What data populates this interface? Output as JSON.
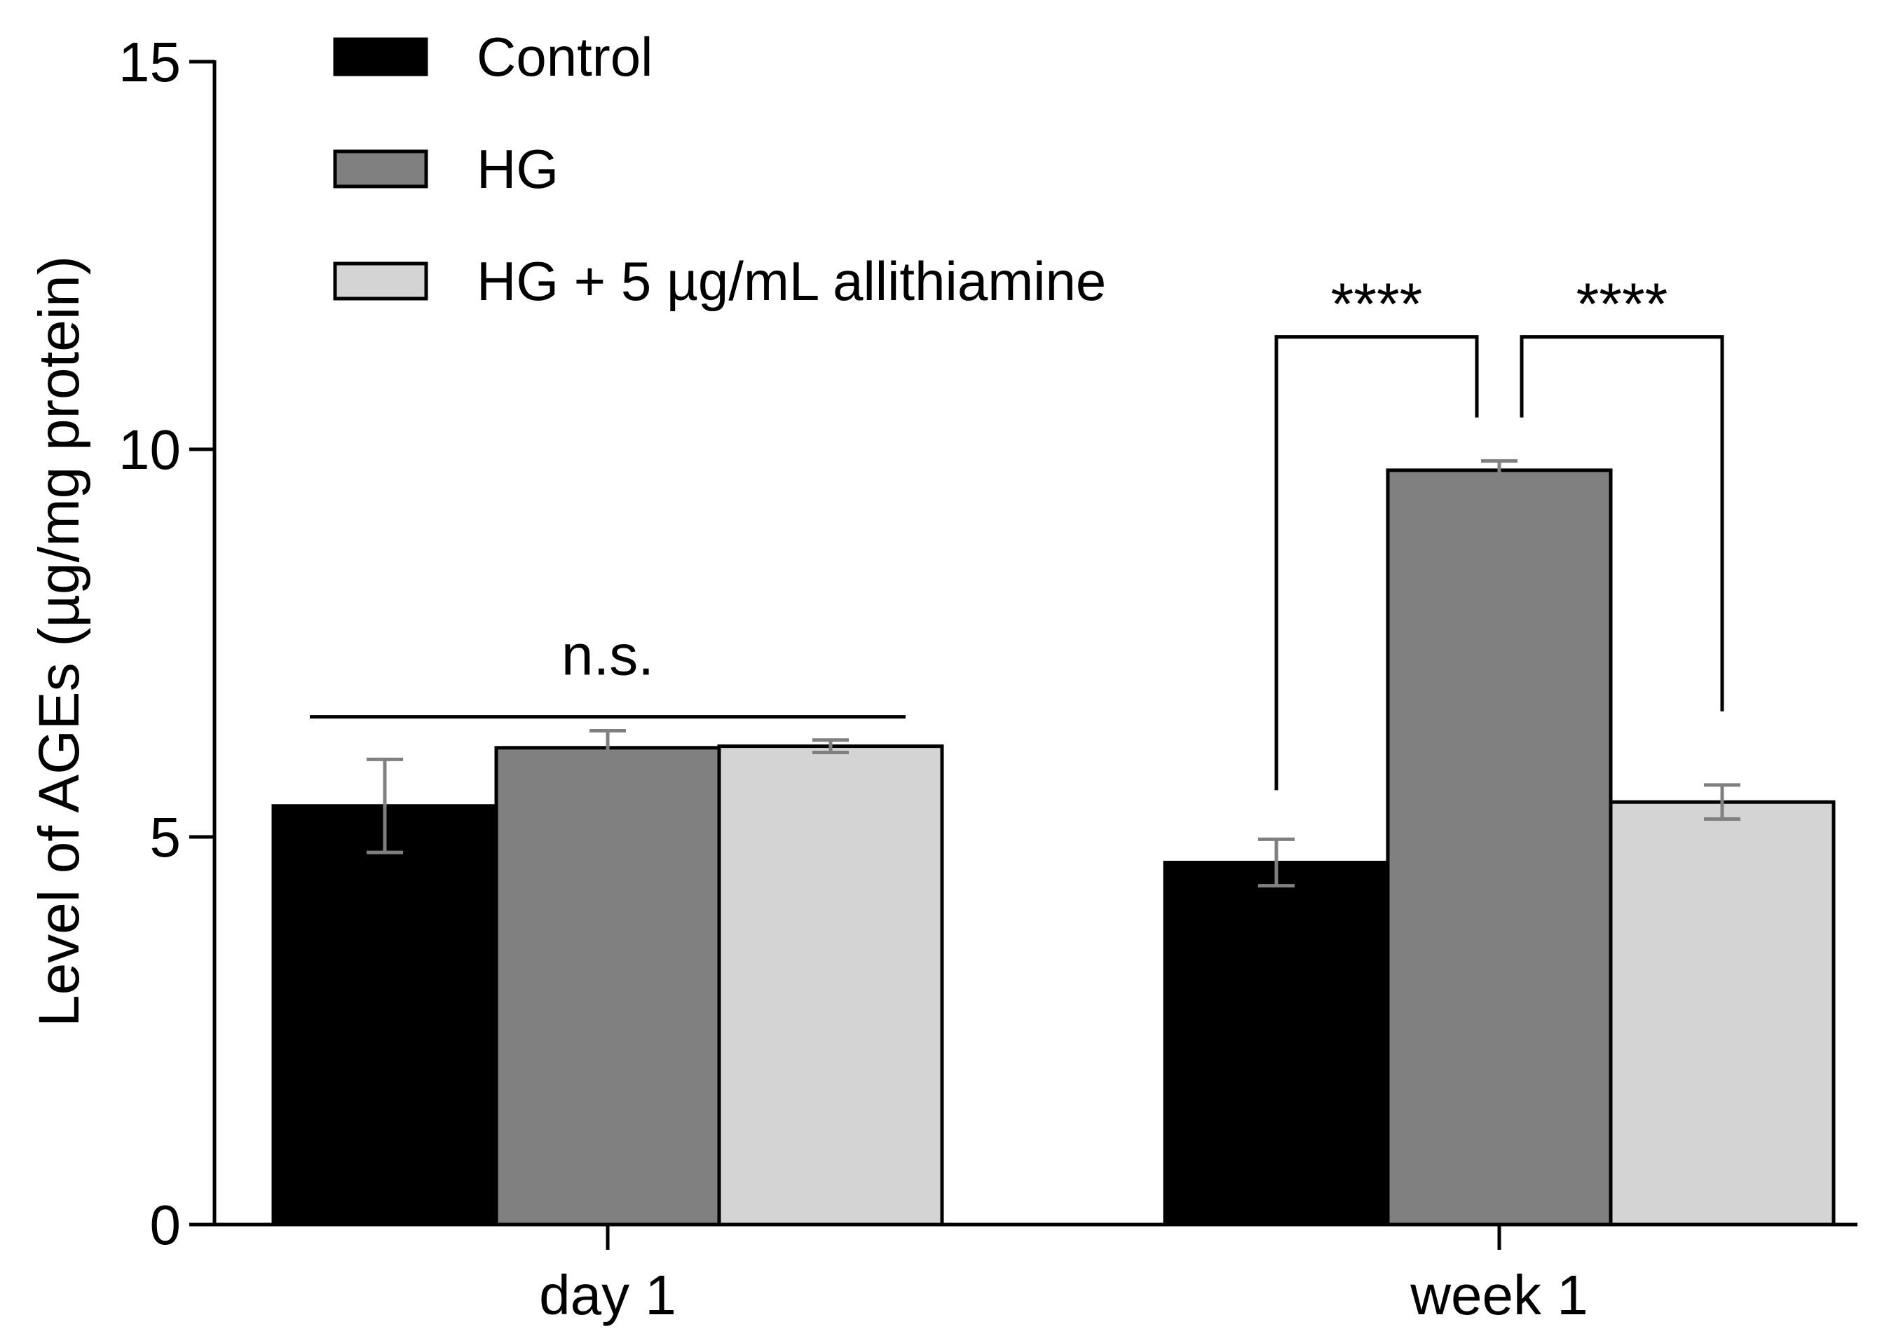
{
  "chart_data": {
    "type": "bar",
    "title": "",
    "xlabel": "",
    "ylabel": "Level of AGEs (µg/mg protein)",
    "ylim": [
      0,
      15
    ],
    "yticks": [
      0,
      5,
      10,
      15
    ],
    "categories": [
      "day 1",
      "week 1"
    ],
    "series": [
      {
        "name": "Control",
        "color": "#000000",
        "values": [
          5.4,
          4.67
        ],
        "errors": [
          0.6,
          0.3
        ]
      },
      {
        "name": "HG",
        "color": "#808080",
        "values": [
          6.15,
          9.73
        ],
        "errors": [
          0.22,
          0.12
        ]
      },
      {
        "name": "HG + 5 µg/mL allithiamine",
        "color": "#d4d4d4",
        "values": [
          6.17,
          5.45
        ],
        "errors": [
          0.08,
          0.22
        ]
      }
    ],
    "error_bar_color": "#808080",
    "legend_position": "top-left",
    "annotations": [
      {
        "text": "n.s.",
        "category": "day 1",
        "type": "line",
        "y": 6.55
      },
      {
        "text": "****",
        "category": "week 1",
        "type": "bracket",
        "between": [
          "Control",
          "HG"
        ],
        "y": 11.45
      },
      {
        "text": "****",
        "category": "week 1",
        "type": "bracket",
        "between": [
          "HG",
          "HG + 5 µg/mL allithiamine"
        ],
        "y": 11.45
      }
    ]
  }
}
